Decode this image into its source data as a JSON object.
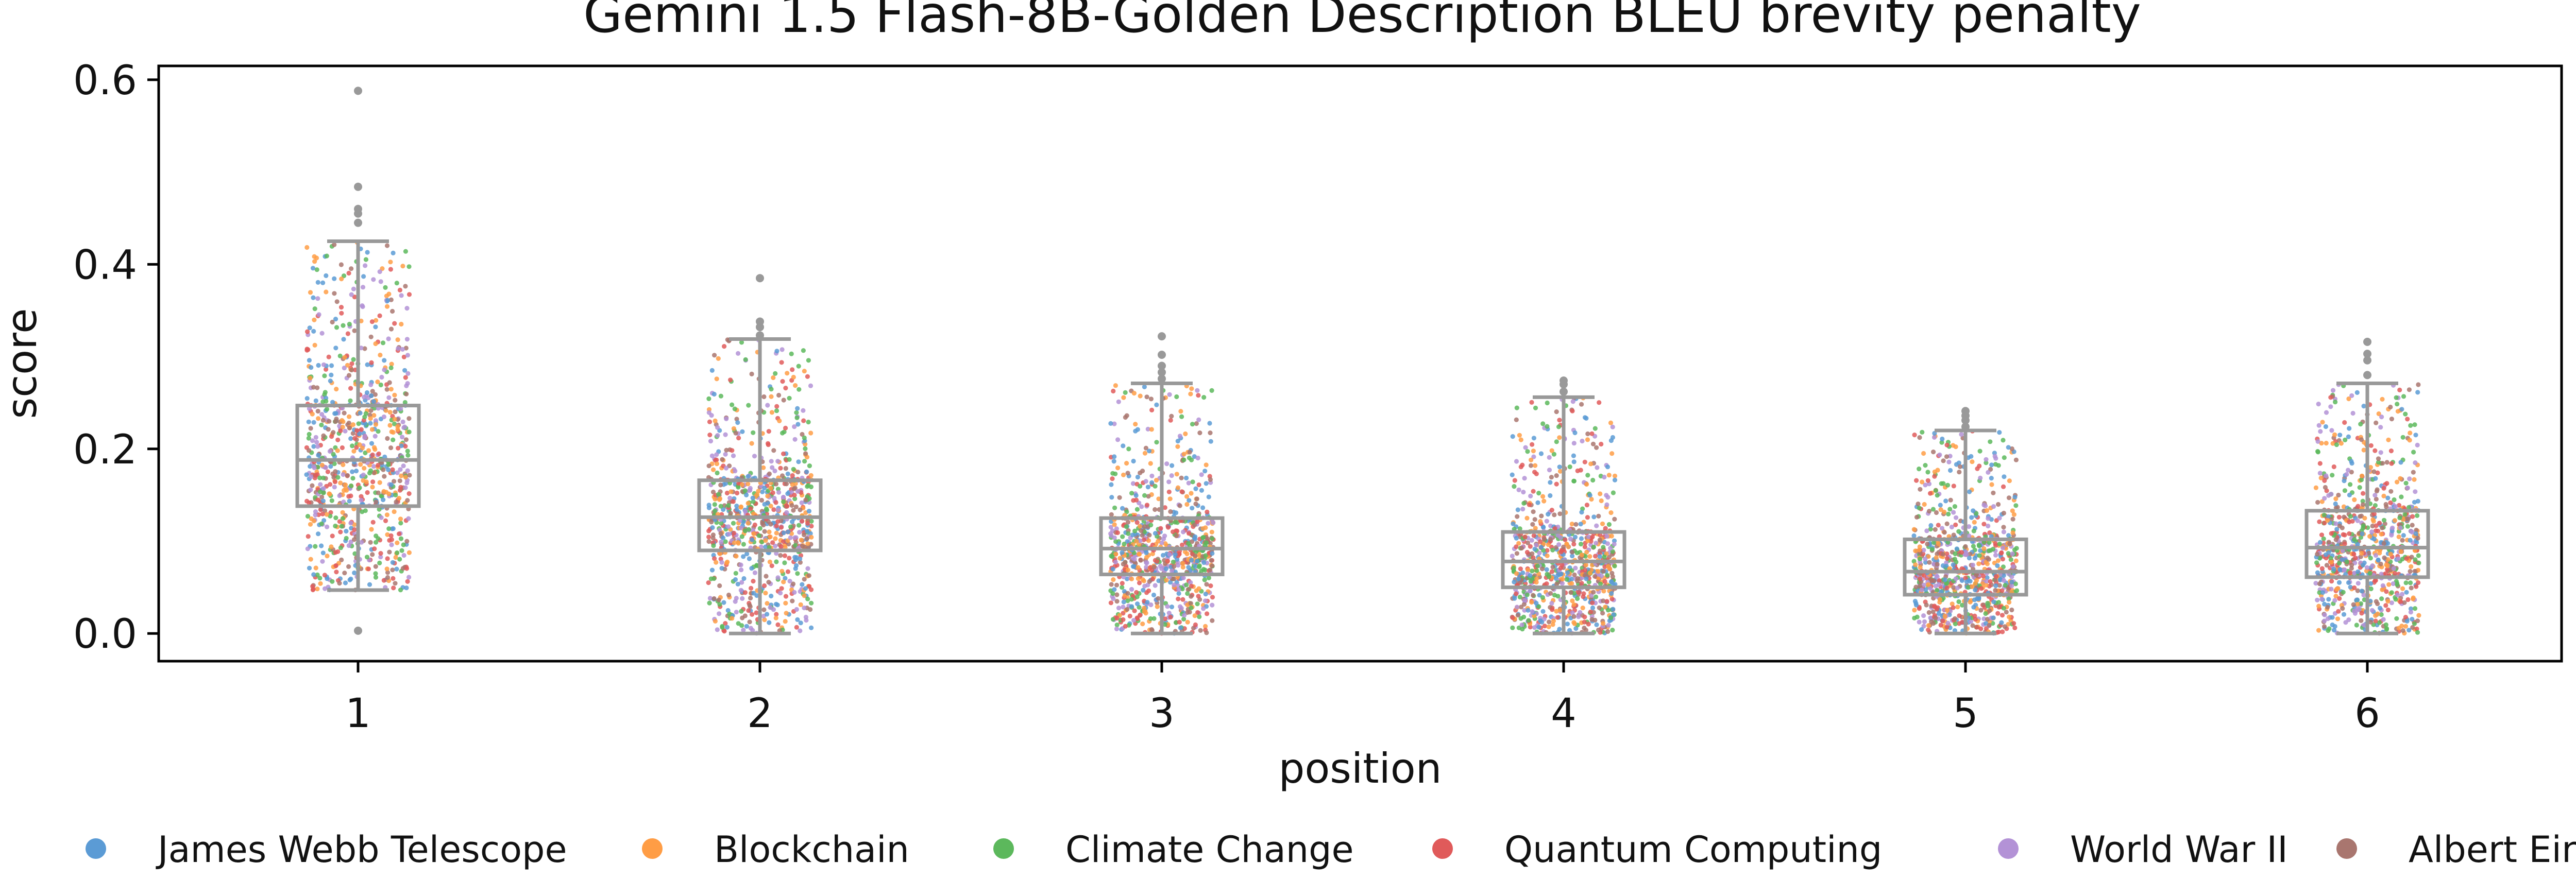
{
  "chart_data": {
    "type": "box",
    "title": "Gemini 1.5 Flash-8B-Golden Description BLEU brevity penalty",
    "xlabel": "position",
    "ylabel": "score",
    "categories": [
      "1",
      "2",
      "3",
      "4",
      "5",
      "6"
    ],
    "ylim": [
      -0.03,
      0.615
    ],
    "yticks": [
      0.0,
      0.2,
      0.4,
      0.6
    ],
    "ytick_labels": [
      "0.0",
      "0.2",
      "0.4",
      "0.6"
    ],
    "grid": false,
    "legend_position": "bottom",
    "box_color": "#999999",
    "boxes": [
      {
        "category": "1",
        "whisker_low": 0.047,
        "q1": 0.138,
        "median": 0.188,
        "q3": 0.247,
        "whisker_high": 0.425,
        "outliers": [
          0.003,
          0.445,
          0.455,
          0.46,
          0.484,
          0.588
        ]
      },
      {
        "category": "2",
        "whisker_low": 0.0,
        "q1": 0.09,
        "median": 0.126,
        "q3": 0.166,
        "whisker_high": 0.319,
        "outliers": [
          0.323,
          0.332,
          0.338,
          0.385
        ]
      },
      {
        "category": "3",
        "whisker_low": 0.0,
        "q1": 0.064,
        "median": 0.092,
        "q3": 0.125,
        "whisker_high": 0.271,
        "outliers": [
          0.276,
          0.283,
          0.29,
          0.302,
          0.322
        ]
      },
      {
        "category": "4",
        "whisker_low": 0.0,
        "q1": 0.05,
        "median": 0.078,
        "q3": 0.11,
        "whisker_high": 0.256,
        "outliers": [
          0.262,
          0.27,
          0.274
        ]
      },
      {
        "category": "5",
        "whisker_low": 0.0,
        "q1": 0.042,
        "median": 0.067,
        "q3": 0.102,
        "whisker_high": 0.22,
        "outliers": [
          0.224,
          0.231,
          0.236,
          0.241
        ]
      },
      {
        "category": "6",
        "whisker_low": 0.0,
        "q1": 0.061,
        "median": 0.093,
        "q3": 0.133,
        "whisker_high": 0.271,
        "outliers": [
          0.28,
          0.296,
          0.303,
          0.316
        ]
      }
    ],
    "series": [
      {
        "name": "James Webb Telescope",
        "color": "#5b9bd5"
      },
      {
        "name": "Blockchain",
        "color": "#ff9d45"
      },
      {
        "name": "Climate Change",
        "color": "#5cb85c"
      },
      {
        "name": "Quantum Computing",
        "color": "#e05a5a"
      },
      {
        "name": "World War II",
        "color": "#b392d6"
      },
      {
        "name": "Albert Einstein",
        "color": "#a9766f"
      }
    ]
  }
}
